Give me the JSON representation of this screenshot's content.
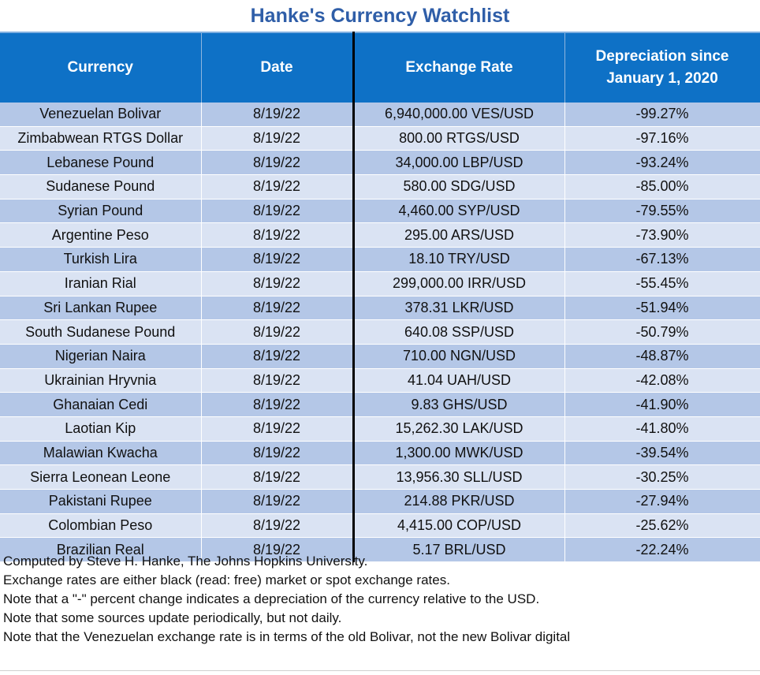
{
  "title": "Hanke's Currency Watchlist",
  "columns": [
    "Currency",
    "Date",
    "Exchange Rate",
    "Depreciation since January 1, 2020"
  ],
  "header_lines": {
    "depreciation_line1": "Depreciation since",
    "depreciation_line2": "January 1, 2020"
  },
  "rows": [
    {
      "currency": "Venezuelan Bolivar",
      "date": "8/19/22",
      "rate": "6,940,000.00 VES/USD",
      "depreciation": "-99.27%"
    },
    {
      "currency": "Zimbabwean RTGS Dollar",
      "date": "8/19/22",
      "rate": "800.00 RTGS/USD",
      "depreciation": "-97.16%"
    },
    {
      "currency": "Lebanese Pound",
      "date": "8/19/22",
      "rate": "34,000.00 LBP/USD",
      "depreciation": "-93.24%"
    },
    {
      "currency": "Sudanese Pound",
      "date": "8/19/22",
      "rate": "580.00 SDG/USD",
      "depreciation": "-85.00%"
    },
    {
      "currency": "Syrian Pound",
      "date": "8/19/22",
      "rate": "4,460.00 SYP/USD",
      "depreciation": "-79.55%"
    },
    {
      "currency": "Argentine Peso",
      "date": "8/19/22",
      "rate": "295.00 ARS/USD",
      "depreciation": "-73.90%"
    },
    {
      "currency": "Turkish Lira",
      "date": "8/19/22",
      "rate": "18.10 TRY/USD",
      "depreciation": "-67.13%"
    },
    {
      "currency": "Iranian Rial",
      "date": "8/19/22",
      "rate": "299,000.00 IRR/USD",
      "depreciation": "-55.45%"
    },
    {
      "currency": "Sri Lankan Rupee",
      "date": "8/19/22",
      "rate": "378.31 LKR/USD",
      "depreciation": "-51.94%"
    },
    {
      "currency": "South Sudanese Pound",
      "date": "8/19/22",
      "rate": "640.08 SSP/USD",
      "depreciation": "-50.79%"
    },
    {
      "currency": "Nigerian Naira",
      "date": "8/19/22",
      "rate": "710.00 NGN/USD",
      "depreciation": "-48.87%"
    },
    {
      "currency": "Ukrainian Hryvnia",
      "date": "8/19/22",
      "rate": "41.04 UAH/USD",
      "depreciation": "-42.08%"
    },
    {
      "currency": "Ghanaian Cedi",
      "date": "8/19/22",
      "rate": "9.83 GHS/USD",
      "depreciation": "-41.90%"
    },
    {
      "currency": "Laotian Kip",
      "date": "8/19/22",
      "rate": "15,262.30 LAK/USD",
      "depreciation": "-41.80%"
    },
    {
      "currency": "Malawian Kwacha",
      "date": "8/19/22",
      "rate": "1,300.00 MWK/USD",
      "depreciation": "-39.54%"
    },
    {
      "currency": "Sierra Leonean Leone",
      "date": "8/19/22",
      "rate": "13,956.30 SLL/USD",
      "depreciation": "-30.25%"
    },
    {
      "currency": "Pakistani Rupee",
      "date": "8/19/22",
      "rate": "214.88 PKR/USD",
      "depreciation": "-27.94%"
    },
    {
      "currency": "Colombian Peso",
      "date": "8/19/22",
      "rate": "4,415.00 COP/USD",
      "depreciation": "-25.62%"
    },
    {
      "currency": "Brazilian Real",
      "date": "8/19/22",
      "rate": "5.17 BRL/USD",
      "depreciation": "-22.24%"
    }
  ],
  "notes": [
    "Computed by Steve H. Hanke, The Johns Hopkins University.",
    "Exchange rates are either black (read: free) market or spot exchange rates.",
    "Note that a \"-\" percent change indicates a depreciation of the currency relative to the USD.",
    "Note that some sources update periodically, but not daily.",
    "Note that the Venezuelan exchange rate is in terms of the old Bolivar, not the new Bolivar digital"
  ],
  "colors": {
    "title": "#2f5ea8",
    "header_bg": "#0e71c6",
    "row_odd": "#b4c7e7",
    "row_even": "#dae3f3"
  }
}
